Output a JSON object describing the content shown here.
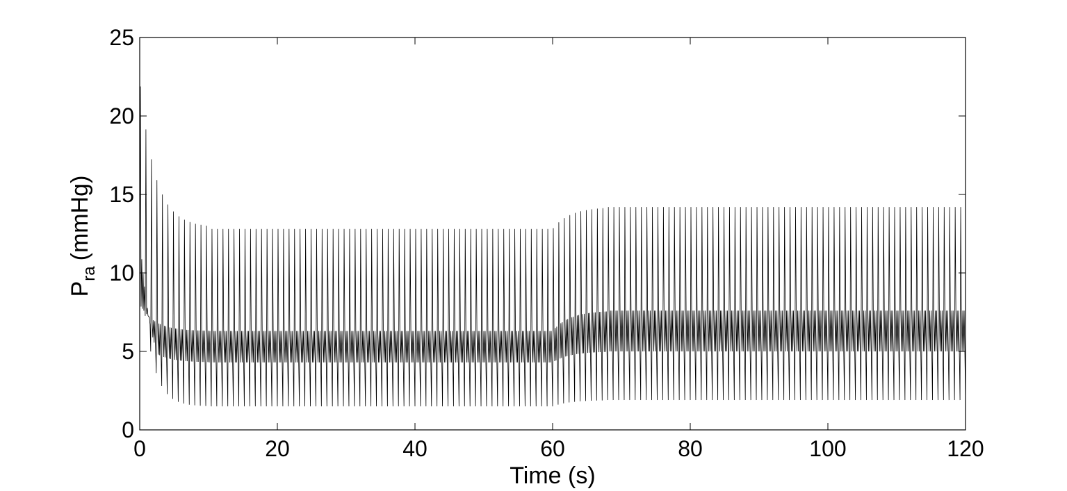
{
  "chart_data": {
    "type": "line",
    "title": "",
    "xlabel": "Time (s)",
    "ylabel": {
      "symbol": "P",
      "subscript": "ra",
      "unit": "(mmHg)"
    },
    "xlim": [
      0,
      120
    ],
    "ylim": [
      0,
      25
    ],
    "x_ticks": [
      0,
      20,
      40,
      60,
      80,
      100,
      120
    ],
    "y_ticks": [
      0,
      5,
      10,
      15,
      20,
      25
    ],
    "grid": false,
    "legend": "none",
    "line_color": "#000000",
    "series": [
      {
        "description_points": "oscillating pressure waveform envelope (peak, mid-plateau, trough) per phase",
        "beats_per_second": 1.25,
        "phases": [
          {
            "t_start": 0,
            "t_end": 10,
            "peak_start": 22.3,
            "peak_end": 12.9,
            "mid_start": 8.0,
            "mid_end": 6.3,
            "trough_start": 11.0,
            "trough_end": 1.5
          },
          {
            "t_start": 10,
            "t_end": 60,
            "peak": 12.8,
            "mid_high": 6.3,
            "mid_low": 4.3,
            "trough": 1.5
          },
          {
            "t_start": 60,
            "t_end": 68,
            "peak_start": 12.8,
            "peak_end": 14.2,
            "mid_high_start": 6.3,
            "mid_high_end": 7.6,
            "mid_low_start": 4.3,
            "mid_low_end": 5.0,
            "trough_start": 1.5,
            "trough_end": 1.9
          },
          {
            "t_start": 68,
            "t_end": 120,
            "peak": 14.2,
            "mid_high": 7.6,
            "mid_low": 5.0,
            "trough": 1.9
          }
        ]
      }
    ]
  }
}
